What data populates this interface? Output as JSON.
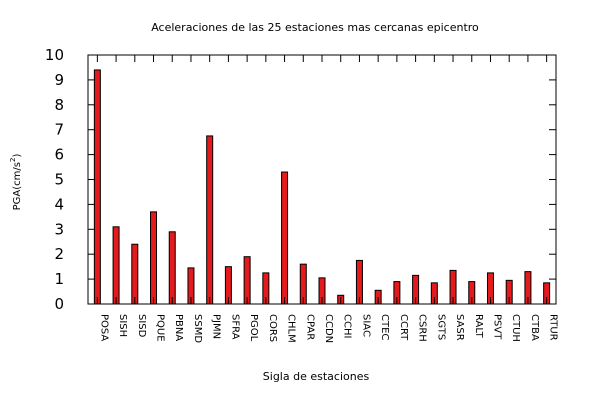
{
  "chart_data": {
    "type": "bar",
    "title": "Aceleraciones de las 25 estaciones mas cercanas epicentro",
    "xlabel": "Sigla de estaciones",
    "ylabel_main": "PGA(cm/s",
    "ylabel_sup": "2",
    "ylabel_close": ")",
    "ylim": [
      0,
      10
    ],
    "yticks": [
      0,
      1,
      2,
      3,
      4,
      5,
      6,
      7,
      8,
      9,
      10
    ],
    "grid": false,
    "bar_color": "#e41a1c",
    "categories": [
      "POSA",
      "SISH",
      "SISD",
      "PQUE",
      "PBNA",
      "SSMD",
      "PJMN",
      "SFRA",
      "PGOL",
      "CORS",
      "CHLM",
      "CPAR",
      "CCDN",
      "CCHI",
      "SIAC",
      "CTEC",
      "CCRT",
      "CSRH",
      "SGTS",
      "SASR",
      "RALT",
      "PSVT",
      "CTUH",
      "CTBA",
      "RTUR"
    ],
    "values": [
      9.4,
      3.1,
      2.4,
      3.7,
      2.9,
      1.45,
      6.75,
      1.5,
      1.9,
      1.25,
      5.3,
      1.6,
      1.05,
      0.35,
      1.75,
      0.55,
      0.9,
      1.15,
      0.85,
      1.35,
      0.9,
      1.25,
      0.95,
      1.3,
      0.85
    ]
  }
}
